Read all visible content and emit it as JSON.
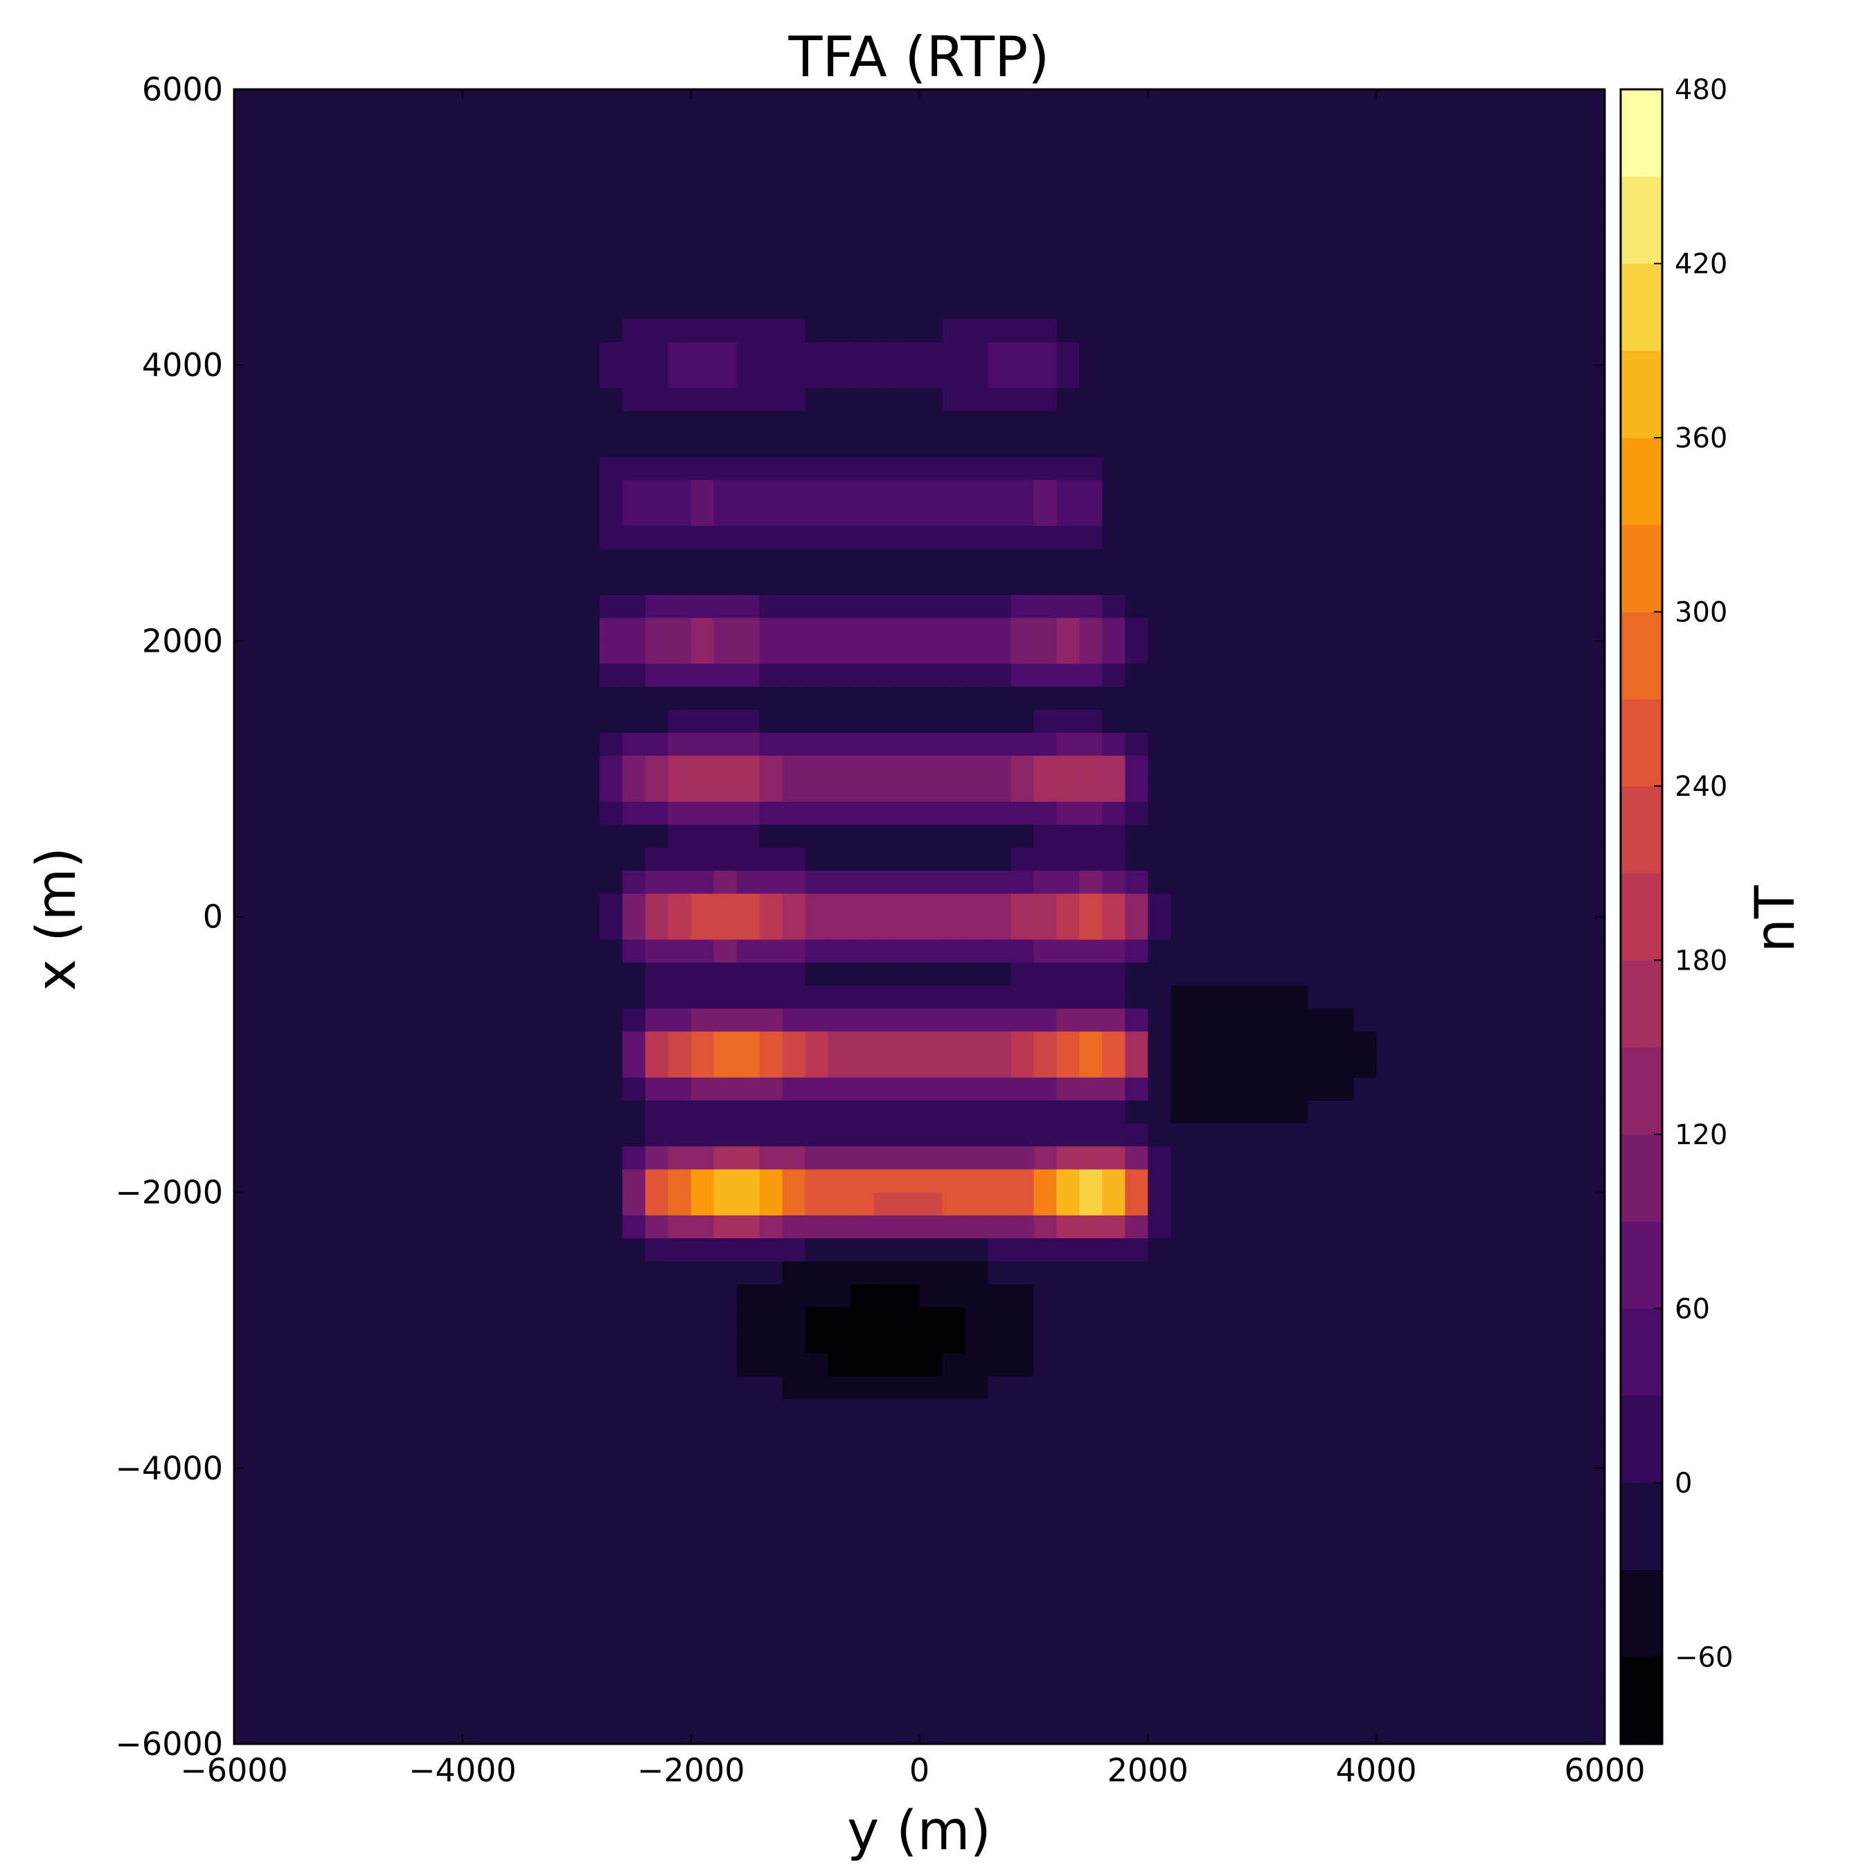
{
  "chart_data": {
    "type": "heatmap",
    "title": "TFA (RTP)",
    "xlabel": "y (m)",
    "ylabel": "x (m)",
    "colorbar_label": "nT",
    "xlim": [
      -6000,
      6000
    ],
    "ylim": [
      -6000,
      6000
    ],
    "x_ticks": [
      -6000,
      -4000,
      -2000,
      0,
      2000,
      4000,
      6000
    ],
    "y_ticks": [
      -6000,
      -4000,
      -2000,
      0,
      2000,
      4000,
      6000
    ],
    "x_tick_labels": [
      "−6000",
      "−4000",
      "−2000",
      "0",
      "2000",
      "4000",
      "6000"
    ],
    "y_tick_labels": [
      "−6000",
      "−4000",
      "−2000",
      "0",
      "2000",
      "4000",
      "6000"
    ],
    "colorbar_range": [
      -90,
      480
    ],
    "colorbar_ticks": [
      -60,
      0,
      60,
      120,
      180,
      240,
      300,
      360,
      420,
      480
    ],
    "colorbar_tick_labels": [
      "−60",
      "0",
      "60",
      "120",
      "180",
      "240",
      "300",
      "360",
      "420",
      "480"
    ],
    "colorbar_levels": [
      -90,
      -60,
      -30,
      0,
      30,
      60,
      90,
      120,
      150,
      180,
      210,
      240,
      270,
      300,
      330,
      360,
      390,
      420,
      450,
      480
    ],
    "colormap": "inferno",
    "grid": false,
    "background_value": -15,
    "anomalies": [
      {
        "kind": "bar",
        "x_center": -2000,
        "y_min": -2300,
        "y_max": 1800,
        "peak": 450,
        "base": 80
      },
      {
        "kind": "bar",
        "x_center": -1000,
        "y_min": -2300,
        "y_max": 1800,
        "peak": 330,
        "base": 60
      },
      {
        "kind": "bar",
        "x_center": 0,
        "y_min": -2400,
        "y_max": 1800,
        "peak": 265,
        "base": 50
      },
      {
        "kind": "bar",
        "x_center": 1000,
        "y_min": -2500,
        "y_max": 1700,
        "peak": 215,
        "base": 40
      },
      {
        "kind": "bar",
        "x_center": 2000,
        "y_min": -2600,
        "y_max": 1600,
        "peak": 155,
        "base": 30
      },
      {
        "kind": "bar",
        "x_center": 3000,
        "y_min": -2600,
        "y_max": 1400,
        "peak": 85,
        "base": 20
      },
      {
        "kind": "bar",
        "x_center": 4000,
        "y_min": -2600,
        "y_max": 1200,
        "peak": 55,
        "base": 15
      },
      {
        "kind": "low",
        "x_center": -3000,
        "y_center": -300,
        "value": -85
      },
      {
        "kind": "low",
        "x_center": -1000,
        "y_center": 2800,
        "value": -60
      }
    ]
  }
}
